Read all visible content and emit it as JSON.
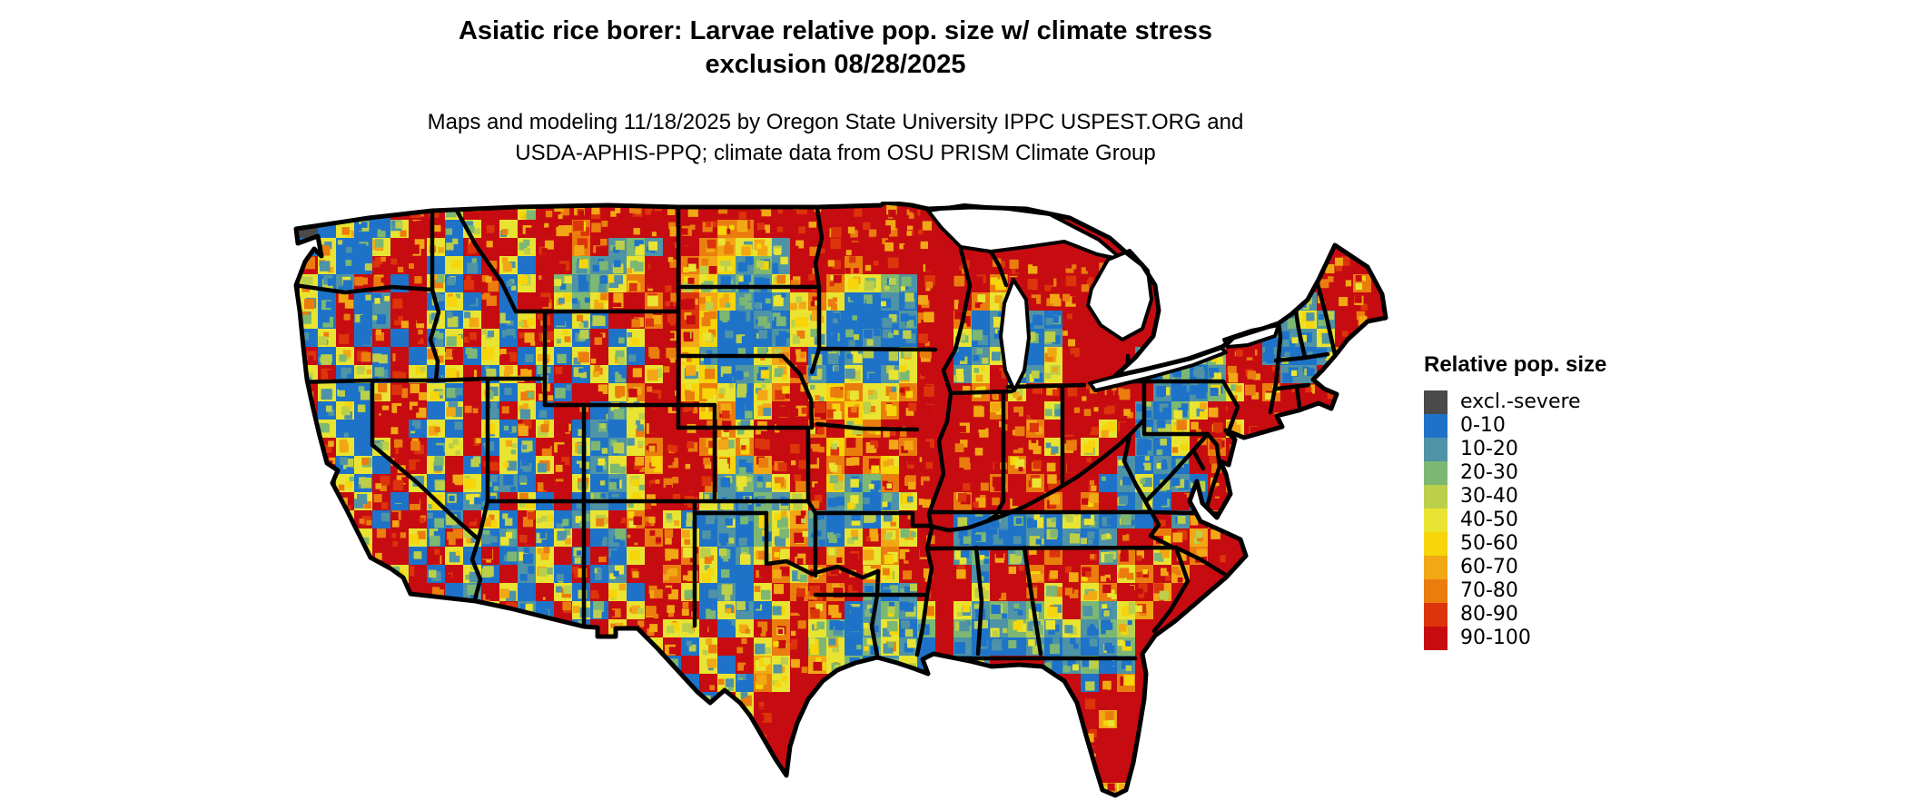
{
  "title": {
    "line1": "Asiatic rice borer: Larvae relative pop. size w/ climate stress",
    "line2": "exclusion 08/28/2025"
  },
  "subtitle": {
    "line1": "Maps and modeling 11/18/2025 by Oregon State University IPPC USPEST.ORG and",
    "line2": "USDA-APHIS-PPQ; climate data from OSU PRISM Climate Group"
  },
  "legend": {
    "title": "Relative pop. size",
    "items": [
      {
        "char": "X",
        "label": "excl.-severe",
        "color": "#4a4a4a"
      },
      {
        "char": "B",
        "label": "0-10",
        "color": "#1e73c8"
      },
      {
        "char": "T",
        "label": "10-20",
        "color": "#4e93a6"
      },
      {
        "char": "G",
        "label": "20-30",
        "color": "#7cb873"
      },
      {
        "char": "g",
        "label": "30-40",
        "color": "#bccf4a"
      },
      {
        "char": "y",
        "label": "40-50",
        "color": "#e9e431"
      },
      {
        "char": "Y",
        "label": "50-60",
        "color": "#f6d50a"
      },
      {
        "char": "o",
        "label": "60-70",
        "color": "#f2a714"
      },
      {
        "char": "O",
        "label": "70-80",
        "color": "#ea7d0e"
      },
      {
        "char": "r",
        "label": "80-90",
        "color": "#dc340b"
      },
      {
        "char": "R",
        "label": "90-100",
        "color": "#c60c11"
      }
    ]
  },
  "map": {
    "region": "Continental United States",
    "border_color": "#000000",
    "water_color": "#ffffff",
    "base_class": "R",
    "noise_seed": 20250828,
    "raster_rows": [
      "RRXByBRRRyRRRyRRRRRRRRRRRRRRRRRRRRRR.........................",
      "RXByBByRRByRyRRRORRRRRRROORRRRRRRRRR.........................",
      "RByBByRRyBRRRyRRORTGTRROoyyTRRRRRRRR.........................",
      "RRyBBRRRByBRyBRRGTTyRROoYTGTRRRORRRR.RRRRRRRRRR..........RRR.",
      "RyBTRRBRyBRRByRGTGyORRoyTGTyRROyyGTR.RRORRRRRRR.........RRRO.",
      "RyBRBTRRByBRBRRyGyRRORroYTBTyOyBBTBR.ROyRRRR..........BRTRRR.",
      "RyBRBTRRyByRByRByBRRORrYBBTByyBBBBTR.OBTRTBR..........BTyTRR.",
      "RByRBRBRByRyBRRyBRByRRoYBBBTyyBBTBBR.yBTRBTR.....TTRR.BTTyRR.",
      "yRByRBRByRByRByByRyBRRYTBByoRBBTBByR.BTyTByR...TBBTGRRTBBTOR.",
      "RyRByBRyByRByRBRByBRyRyYBTGyOTByBTyR.TyRBTyR...BTGBTRRRTTRR..",
      "RRyBByRRyBRyByRBRRyORRYOyByORyYOyyOR.RORyRRRRRRRTBTGyRORRR...",
      ".RByBRRRByRBRyBRRBTyRRRYOByRRROYyORR.RRORRyRRRRTBGyRRRR......",
      ".RyBBRRByBRyBRyRBTByRRRROyRRRORYORRR.RRRRORRRyRBTyRRyR.......",
      ".RRyByRRByRByBRRyBTyORROyORRRRYORROR.RRRRRyRyRRTByRORR.......",
      "..RByBRRyRBRyByRBTyRoRRRYToRRROROYRR.RRRORRRRRTBTBRRRR.......",
      "..RyBRRyBRyBTBRRyBTyRRRRTGTyRRYTGORR.RRORORRRBTyBTBROR.......",
      "...RyRBRyBTBRyBRBTByRRRyTBGTyRTGBTyR.ORRRRORORBTBRBRRO.......",
      "..RyRBRRBTRyBRyBTyRORyBBTBGyoTBTByR..BBTBTByTBTBRTRORR.......",
      "....yRRyBRyBTRByRBTRORyBTBGyOTByRoyR.TBBBTBTBTRRORoRR........",
      "....yRRBRyBRBTyRBRByRROyBTyORRoRyORR.TGRTRORRTORyRORR........",
      ".....RyRBRyBRTyBRBTRRORyBBROyORROyRR.RTRRORRORyORoR..........",
      "......R.RBTRyBRyBRyBRRyBTByRORORTBTR.RyRRRyRyORRo............",
      "........yRByRTBRyBRyRRRByTByRORBTGTy.yTGTGyRGTyo.............",
      ".........RyBRyRRBRyRRyyRByRORyGBTyBG.GBTGgTyTGg..............",
      "...................RyRByRRyORGyBGyTB.TBBBTBTBTG..............",
      "....................RBRyBRoyRoyGBTyB.BT...BTGBT..............",
      "......................BRyBOy......TB........BRO..............",
      "......................RBRyR...............TRR................",
      ".......................RByR................RRo...............",
      "........................RBR................RR................",
      "........................RR.................RR................",
      ".........................R.................OR................",
      ".............................................oy.............."
    ]
  }
}
